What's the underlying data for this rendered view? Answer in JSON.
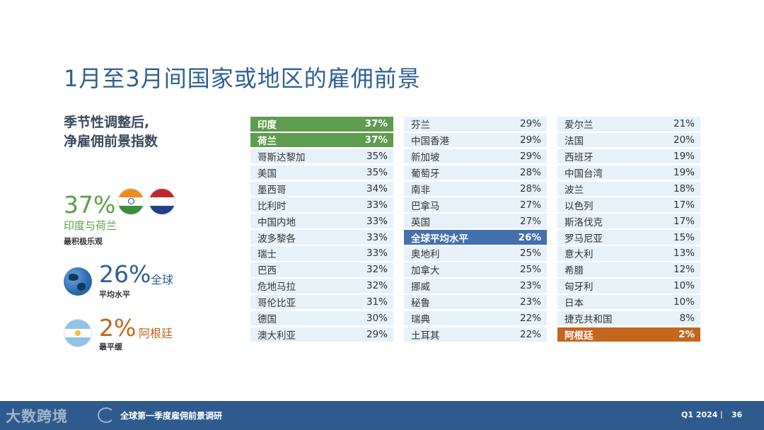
{
  "title": "1月至3月间国家或地区的雇佣前景",
  "subtitle": [
    "季节性调整后,",
    "净雇佣前景指数"
  ],
  "highlights": {
    "top": {
      "value": "37%",
      "label": "印度与荷兰",
      "sub": "最积极乐观"
    },
    "global": {
      "value": "26%",
      "label": "全球",
      "sub": "平均水平"
    },
    "bottom": {
      "value": "2%",
      "label": "阿根廷",
      "sub": "最平缓"
    }
  },
  "columns": [
    [
      {
        "name": "印度",
        "value": "37%",
        "style": "green"
      },
      {
        "name": "荷兰",
        "value": "37%",
        "style": "green"
      },
      {
        "name": "哥斯达黎加",
        "value": "35%"
      },
      {
        "name": "美国",
        "value": "35%"
      },
      {
        "name": "墨西哥",
        "value": "34%"
      },
      {
        "name": "比利时",
        "value": "33%"
      },
      {
        "name": "中国内地",
        "value": "33%"
      },
      {
        "name": "波多黎各",
        "value": "33%"
      },
      {
        "name": "瑞士",
        "value": "33%"
      },
      {
        "name": "巴西",
        "value": "32%"
      },
      {
        "name": "危地马拉",
        "value": "32%"
      },
      {
        "name": "哥伦比亚",
        "value": "31%"
      },
      {
        "name": "德国",
        "value": "30%"
      },
      {
        "name": "澳大利亚",
        "value": "29%"
      }
    ],
    [
      {
        "name": "芬兰",
        "value": "29%"
      },
      {
        "name": "中国香港",
        "value": "29%"
      },
      {
        "name": "新加坡",
        "value": "29%"
      },
      {
        "name": "葡萄牙",
        "value": "28%"
      },
      {
        "name": "南非",
        "value": "28%"
      },
      {
        "name": "巴拿马",
        "value": "27%"
      },
      {
        "name": "英国",
        "value": "27%"
      },
      {
        "name": "全球平均水平",
        "value": "26%",
        "style": "blue"
      },
      {
        "name": "奥地利",
        "value": "25%"
      },
      {
        "name": "加拿大",
        "value": "25%"
      },
      {
        "name": "挪威",
        "value": "23%"
      },
      {
        "name": "秘鲁",
        "value": "23%"
      },
      {
        "name": "瑞典",
        "value": "22%"
      },
      {
        "name": "土耳其",
        "value": "22%"
      }
    ],
    [
      {
        "name": "爱尔兰",
        "value": "21%"
      },
      {
        "name": "法国",
        "value": "20%"
      },
      {
        "name": "西班牙",
        "value": "19%"
      },
      {
        "name": "中国台湾",
        "value": "19%"
      },
      {
        "name": "波兰",
        "value": "18%"
      },
      {
        "name": "以色列",
        "value": "17%"
      },
      {
        "name": "斯洛伐克",
        "value": "17%"
      },
      {
        "name": "罗马尼亚",
        "value": "15%"
      },
      {
        "name": "意大利",
        "value": "13%"
      },
      {
        "name": "希腊",
        "value": "12%"
      },
      {
        "name": "匈牙利",
        "value": "10%"
      },
      {
        "name": "日本",
        "value": "10%"
      },
      {
        "name": "捷克共和国",
        "value": "8%"
      },
      {
        "name": "阿根廷",
        "value": "2%",
        "style": "orange"
      }
    ]
  ],
  "footer": {
    "watermark": "大数跨境",
    "report": "全球第一季度雇佣前景调研",
    "quarter": "Q1 2024",
    "separator": "|",
    "page": "36"
  },
  "colors": {
    "title": "#2f5f93",
    "top": "#5e9d4f",
    "global": "#4471ad",
    "bottom": "#c5661f",
    "row_bg": "#e6f1f9",
    "footer": "#2e5a8e"
  },
  "icons": [
    "india-flag-icon",
    "netherlands-flag-icon",
    "globe-icon",
    "argentina-flag-icon"
  ]
}
